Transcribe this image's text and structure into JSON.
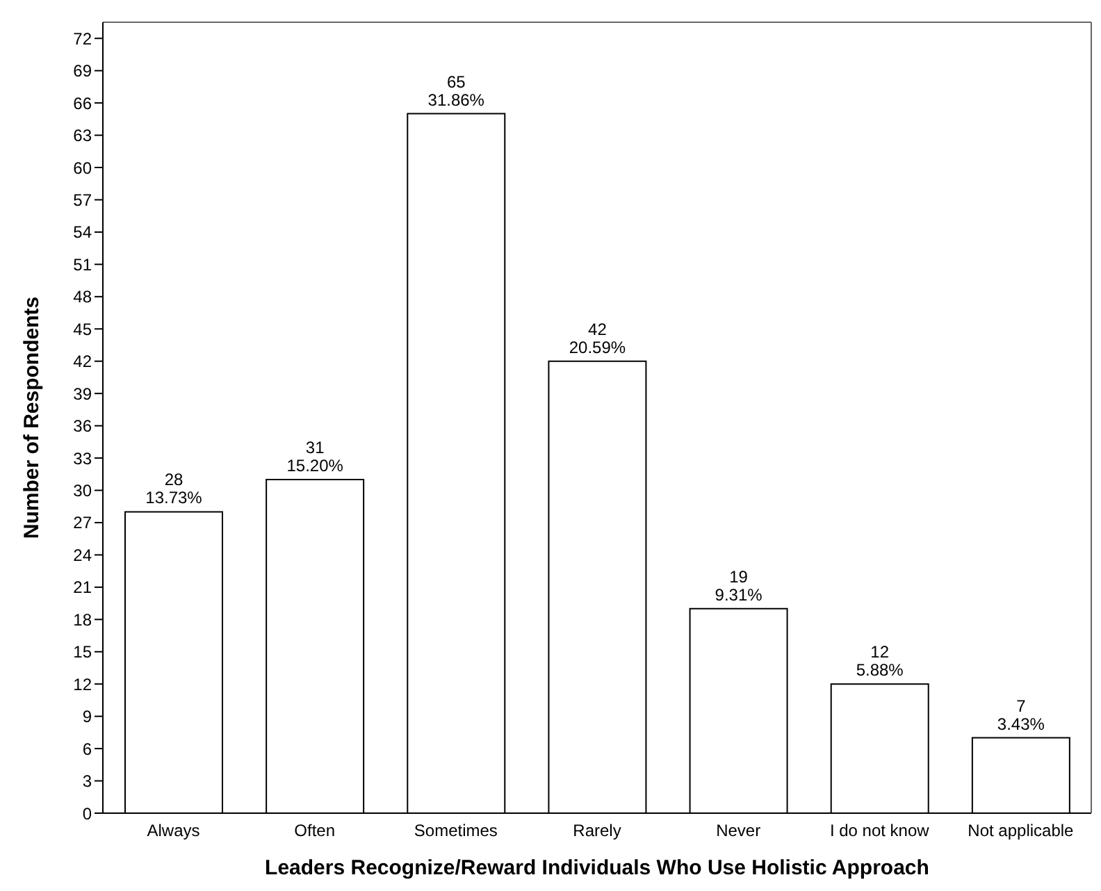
{
  "chart_data": {
    "type": "bar",
    "xlabel": "Leaders Recognize/Reward Individuals Who Use Holistic Approach",
    "ylabel": "Number of Respondents",
    "categories": [
      "Always",
      "Often",
      "Sometimes",
      "Rarely",
      "Never",
      "I do not know",
      "Not applicable"
    ],
    "values": [
      28,
      31,
      65,
      42,
      19,
      12,
      7
    ],
    "value_labels": [
      "28\n13.73%",
      "31\n15.20%",
      "65\n31.86%",
      "42\n20.59%",
      "19\n9.31%",
      "12\n5.88%",
      "7\n3.43%"
    ],
    "color": "#ffffff",
    "ylim": [
      0,
      73.5
    ],
    "yticks": [
      0,
      3,
      6,
      9,
      12,
      15,
      18,
      21,
      24,
      27,
      30,
      33,
      36,
      39,
      42,
      45,
      48,
      51,
      54,
      57,
      60,
      63,
      66,
      69,
      72
    ],
    "grid": false,
    "legend": false
  }
}
